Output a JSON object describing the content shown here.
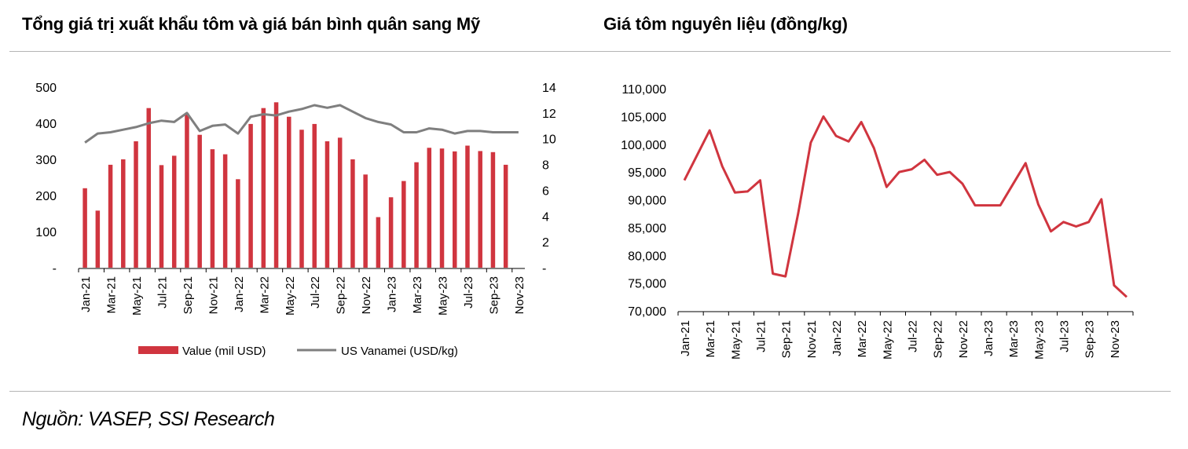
{
  "left_title": "Tổng giá trị xuất khẩu tôm và giá bán bình quân sang Mỹ",
  "right_title": "Giá tôm nguyên liệu (đồng/kg)",
  "source": "Nguồn: VASEP, SSI Research",
  "colors": {
    "bar": "#d0353f",
    "gray_line": "#7f7f7f",
    "red_line": "#d0353f",
    "axis": "#000000"
  },
  "chart_data": [
    {
      "type": "bar",
      "title": "Tổng giá trị xuất khẩu tôm và giá bán bình quân sang Mỹ",
      "categories": [
        "Jan-21",
        "Feb-21",
        "Mar-21",
        "Apr-21",
        "May-21",
        "Jun-21",
        "Jul-21",
        "Aug-21",
        "Sep-21",
        "Oct-21",
        "Nov-21",
        "Dec-21",
        "Jan-22",
        "Feb-22",
        "Mar-22",
        "Apr-22",
        "May-22",
        "Jun-22",
        "Jul-22",
        "Aug-22",
        "Sep-22",
        "Oct-22",
        "Nov-22",
        "Dec-22",
        "Jan-23",
        "Feb-23",
        "Mar-23",
        "Apr-23",
        "May-23",
        "Jun-23",
        "Jul-23",
        "Aug-23",
        "Sep-23",
        "Oct-23",
        "Nov-23"
      ],
      "tick_labels": [
        "Jan-21",
        "Mar-21",
        "May-21",
        "Jul-21",
        "Sep-21",
        "Nov-21",
        "Jan-22",
        "Mar-22",
        "May-22",
        "Jul-22",
        "Sep-22",
        "Nov-22",
        "Jan-23",
        "Mar-23",
        "May-23",
        "Jul-23",
        "Sep-23",
        "Nov-23"
      ],
      "series": [
        {
          "name": "Value (mil USD)",
          "kind": "bar",
          "axis": "left",
          "values": [
            220,
            158,
            285,
            300,
            350,
            442,
            284,
            310,
            427,
            368,
            328,
            314,
            245,
            398,
            442,
            458,
            418,
            382,
            398,
            350,
            360,
            300,
            258,
            140,
            195,
            240,
            292,
            332,
            330,
            322,
            338,
            323,
            320,
            285,
            0
          ]
        },
        {
          "name": "US Vanamei (USD/kg)",
          "kind": "line",
          "axis": "right",
          "values": [
            9.7,
            10.4,
            10.5,
            10.7,
            10.9,
            11.2,
            11.4,
            11.3,
            12.0,
            10.6,
            11.0,
            11.1,
            10.4,
            11.7,
            11.9,
            11.8,
            12.1,
            12.3,
            12.6,
            12.4,
            12.6,
            12.1,
            11.6,
            11.3,
            11.1,
            10.5,
            10.5,
            10.8,
            10.7,
            10.4,
            10.6,
            10.6,
            10.5,
            10.5,
            10.5
          ]
        }
      ],
      "left_axis": {
        "ticks": [
          "500",
          "400",
          "300",
          "200",
          "100",
          "-"
        ],
        "ylim": [
          0,
          500
        ]
      },
      "right_axis": {
        "ticks": [
          "14",
          "12",
          "10",
          "8",
          "6",
          "4",
          "2",
          "-"
        ],
        "ylim": [
          0,
          14
        ]
      },
      "legend_position": "bottom"
    },
    {
      "type": "line",
      "title": "Giá tôm nguyên liệu (đồng/kg)",
      "categories": [
        "Jan-21",
        "Feb-21",
        "Mar-21",
        "Apr-21",
        "May-21",
        "Jun-21",
        "Jul-21",
        "Aug-21",
        "Sep-21",
        "Oct-21",
        "Nov-21",
        "Dec-21",
        "Jan-22",
        "Feb-22",
        "Mar-22",
        "Apr-22",
        "May-22",
        "Jun-22",
        "Jul-22",
        "Aug-22",
        "Sep-22",
        "Oct-22",
        "Nov-22",
        "Dec-22",
        "Jan-23",
        "Feb-23",
        "Mar-23",
        "Apr-23",
        "May-23",
        "Jun-23",
        "Jul-23",
        "Aug-23",
        "Sep-23",
        "Oct-23",
        "Nov-23",
        "Dec-23"
      ],
      "tick_labels": [
        "Jan-21",
        "Mar-21",
        "May-21",
        "Jul-21",
        "Sep-21",
        "Nov-21",
        "Jan-22",
        "Mar-22",
        "May-22",
        "Jul-22",
        "Sep-22",
        "Nov-22",
        "Jan-23",
        "Mar-23",
        "May-23",
        "Jul-23",
        "Sep-23",
        "Nov-23"
      ],
      "series": [
        {
          "name": "",
          "values": [
            93500,
            98000,
            102500,
            96000,
            91300,
            91500,
            93500,
            76700,
            76200,
            87500,
            100300,
            105000,
            101500,
            100500,
            104000,
            99300,
            92300,
            95000,
            95500,
            97200,
            94500,
            95000,
            92900,
            89000,
            89000,
            89000,
            92800,
            96600,
            89200,
            84300,
            86000,
            85200,
            86000,
            90100,
            74600,
            72500
          ]
        }
      ],
      "y_axis": {
        "ticks": [
          "110,000",
          "105,000",
          "100,000",
          "95,000",
          "90,000",
          "85,000",
          "80,000",
          "75,000",
          "70,000"
        ],
        "ylim": [
          70000,
          110000
        ]
      }
    }
  ]
}
